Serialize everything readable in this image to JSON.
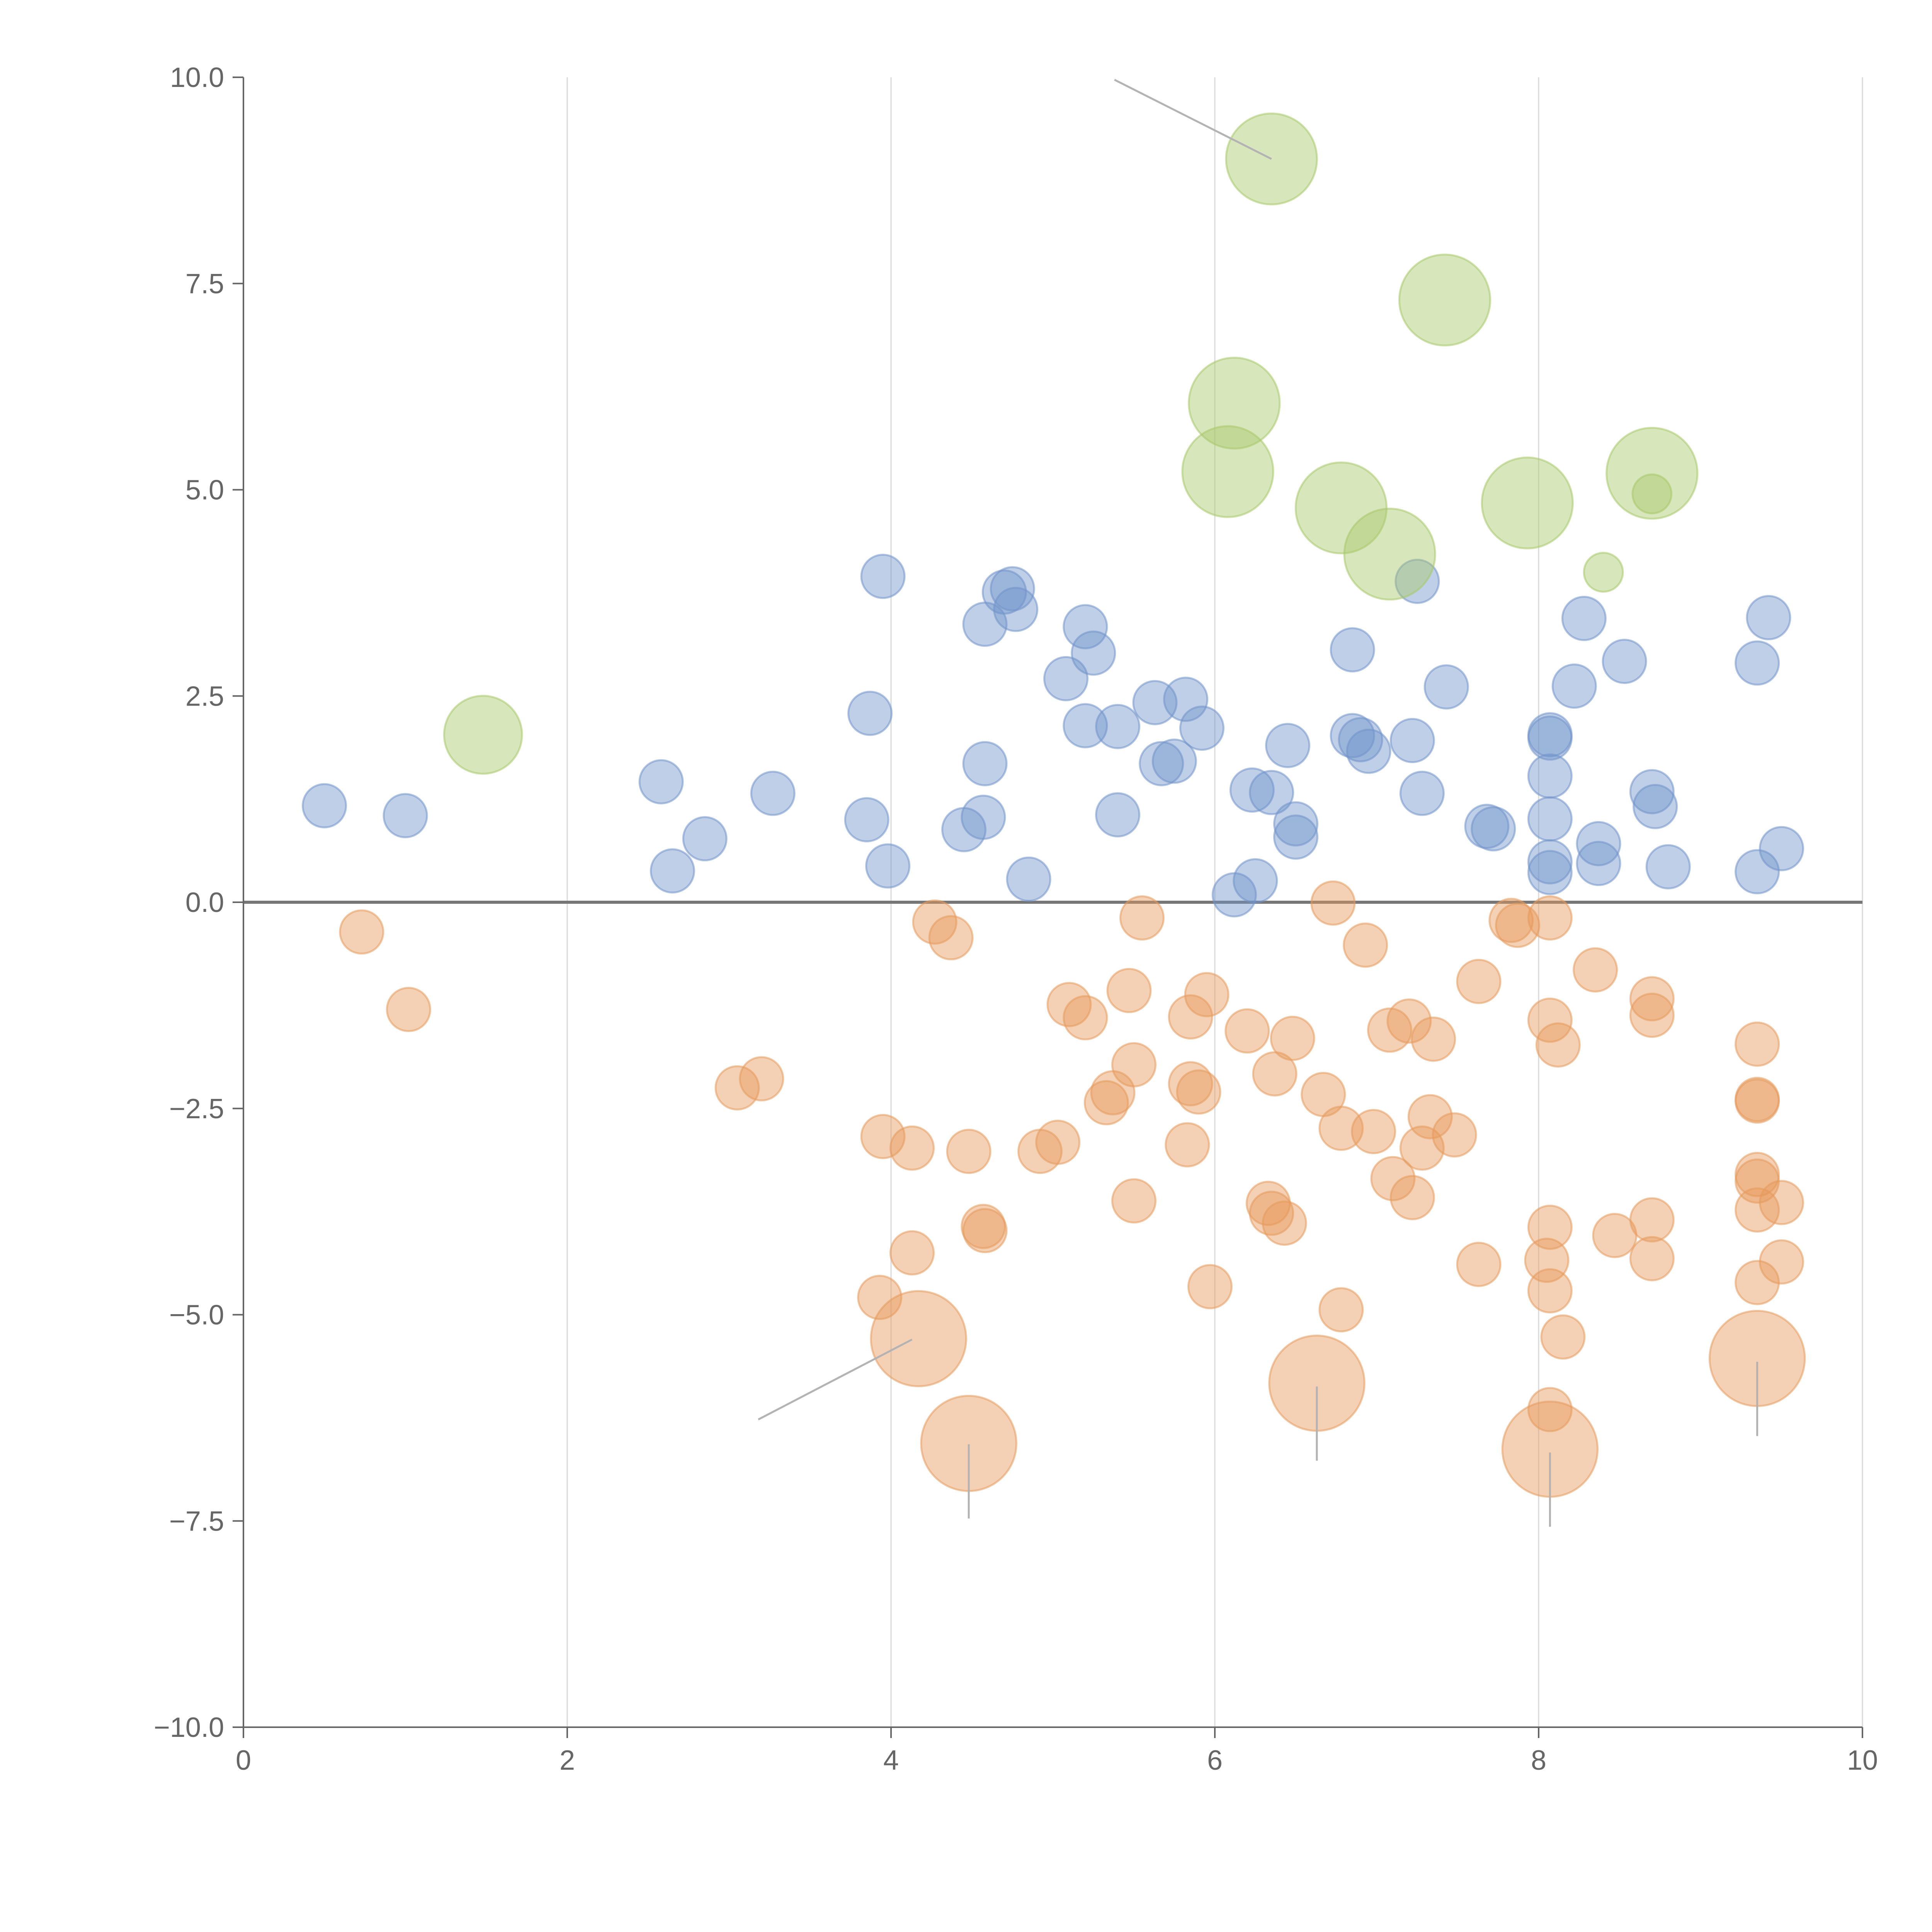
{
  "colors": {
    "series_pos": "#7194ca",
    "series_neg": "#e69a5c",
    "series_large": "#a8c86a",
    "axis": "#666666",
    "grid": "#d9d9d9",
    "zero_line": "#777777",
    "leader": "#b3b3b3"
  },
  "chart_data": {
    "type": "scatter",
    "title": "",
    "xlabel": "",
    "ylabel": "",
    "xlim": [
      0,
      10
    ],
    "ylim": [
      -10,
      10
    ],
    "x_ticks": [
      0,
      2,
      4,
      6,
      8,
      10
    ],
    "x_tick_labels": [
      "0",
      "2",
      "4",
      "6",
      "8",
      "10"
    ],
    "y_ticks": [
      10,
      7.5,
      5,
      2.5,
      0,
      -2.5,
      -5,
      -7.5,
      -10
    ],
    "y_tick_labels": [
      "10.0",
      "7.5",
      "5.0",
      "2.5",
      "0.0",
      "−2.5",
      "−5.0",
      "−7.5",
      "−10.0"
    ],
    "grid": "vertical",
    "zero_line": true,
    "legend": "none",
    "series": [
      {
        "name": "positive",
        "color_key": "series_pos",
        "points": [
          [
            0.5,
            1.17,
            1
          ],
          [
            1.0,
            1.05,
            1
          ],
          [
            2.58,
            1.46,
            1
          ],
          [
            2.65,
            0.38,
            1
          ],
          [
            2.85,
            0.77,
            1
          ],
          [
            3.27,
            1.32,
            1
          ],
          [
            3.85,
            1.0,
            1
          ],
          [
            3.87,
            2.29,
            1
          ],
          [
            3.95,
            3.95,
            1
          ],
          [
            3.98,
            0.44,
            1
          ],
          [
            4.45,
            0.88,
            1
          ],
          [
            4.57,
            1.03,
            1
          ],
          [
            4.58,
            1.68,
            1
          ],
          [
            4.58,
            3.37,
            1
          ],
          [
            4.7,
            3.76,
            1
          ],
          [
            4.75,
            3.8,
            1
          ],
          [
            4.77,
            3.55,
            1
          ],
          [
            4.85,
            0.28,
            1
          ],
          [
            5.08,
            2.71,
            1
          ],
          [
            5.2,
            2.14,
            1
          ],
          [
            5.2,
            3.34,
            1
          ],
          [
            5.25,
            3.02,
            1
          ],
          [
            5.4,
            2.13,
            1
          ],
          [
            5.4,
            1.06,
            1
          ],
          [
            5.63,
            2.42,
            1
          ],
          [
            5.67,
            1.68,
            1
          ],
          [
            5.75,
            1.71,
            1
          ],
          [
            5.82,
            2.46,
            1
          ],
          [
            5.92,
            2.11,
            1
          ],
          [
            6.12,
            0.09,
            1
          ],
          [
            6.23,
            1.36,
            1
          ],
          [
            6.25,
            0.26,
            1
          ],
          [
            6.35,
            1.33,
            1
          ],
          [
            6.45,
            1.9,
            1
          ],
          [
            6.5,
            0.95,
            1
          ],
          [
            6.5,
            0.79,
            1
          ],
          [
            6.85,
            3.06,
            1
          ],
          [
            6.85,
            2.02,
            1
          ],
          [
            6.9,
            1.97,
            1
          ],
          [
            6.95,
            1.83,
            1
          ],
          [
            7.22,
            1.96,
            1
          ],
          [
            7.25,
            3.89,
            1
          ],
          [
            7.28,
            1.32,
            1
          ],
          [
            7.43,
            2.61,
            1
          ],
          [
            7.68,
            0.92,
            1
          ],
          [
            7.72,
            0.89,
            1
          ],
          [
            8.07,
            2.03,
            1
          ],
          [
            8.07,
            1.99,
            1
          ],
          [
            8.07,
            1.53,
            1
          ],
          [
            8.07,
            1.01,
            1
          ],
          [
            8.07,
            0.49,
            1
          ],
          [
            8.07,
            0.36,
            1
          ],
          [
            8.22,
            2.62,
            1
          ],
          [
            8.28,
            3.44,
            1
          ],
          [
            8.37,
            0.71,
            1
          ],
          [
            8.37,
            0.47,
            1
          ],
          [
            8.53,
            2.92,
            1
          ],
          [
            8.7,
            1.34,
            1
          ],
          [
            8.72,
            1.16,
            1
          ],
          [
            8.8,
            0.43,
            1
          ],
          [
            9.35,
            2.9,
            1
          ],
          [
            9.35,
            0.37,
            1
          ],
          [
            9.42,
            3.45,
            1
          ],
          [
            9.5,
            0.65,
            1
          ]
        ]
      },
      {
        "name": "negative",
        "color_key": "series_neg",
        "points": [
          [
            0.73,
            -0.36,
            1
          ],
          [
            1.02,
            -1.3,
            1
          ],
          [
            3.05,
            -2.25,
            1
          ],
          [
            3.2,
            -2.14,
            1
          ],
          [
            3.95,
            -2.84,
            1
          ],
          [
            3.93,
            -4.79,
            1
          ],
          [
            4.13,
            -2.98,
            1
          ],
          [
            4.13,
            -4.25,
            1
          ],
          [
            4.17,
            -5.29,
            2.2
          ],
          [
            4.27,
            -0.24,
            1
          ],
          [
            4.37,
            -0.43,
            1
          ],
          [
            4.48,
            -3.02,
            1
          ],
          [
            4.48,
            -6.56,
            2.2
          ],
          [
            4.57,
            -3.93,
            1
          ],
          [
            4.58,
            -3.98,
            1
          ],
          [
            4.92,
            -3.02,
            1
          ],
          [
            5.03,
            -2.91,
            1
          ],
          [
            5.1,
            -1.24,
            1
          ],
          [
            5.2,
            -1.4,
            1
          ],
          [
            5.33,
            -2.43,
            1
          ],
          [
            5.37,
            -2.31,
            1
          ],
          [
            5.47,
            -1.07,
            1
          ],
          [
            5.5,
            -1.97,
            1
          ],
          [
            5.5,
            -3.62,
            1
          ],
          [
            5.55,
            -0.19,
            1
          ],
          [
            5.83,
            -2.94,
            1
          ],
          [
            5.85,
            -2.2,
            1
          ],
          [
            5.85,
            -1.39,
            1
          ],
          [
            5.9,
            -2.3,
            1
          ],
          [
            5.95,
            -1.12,
            1
          ],
          [
            5.97,
            -4.66,
            1
          ],
          [
            6.2,
            -1.56,
            1
          ],
          [
            6.33,
            -3.65,
            1
          ],
          [
            6.35,
            -3.77,
            1
          ],
          [
            6.37,
            -2.08,
            1
          ],
          [
            6.43,
            -3.89,
            1
          ],
          [
            6.48,
            -1.65,
            1
          ],
          [
            6.63,
            -5.83,
            2.2
          ],
          [
            6.67,
            -2.33,
            1
          ],
          [
            6.73,
            -0.01,
            1
          ],
          [
            6.78,
            -2.74,
            1
          ],
          [
            6.78,
            -4.94,
            1
          ],
          [
            6.93,
            -0.52,
            1
          ],
          [
            6.98,
            -2.78,
            1
          ],
          [
            7.08,
            -1.55,
            1
          ],
          [
            7.1,
            -3.35,
            1
          ],
          [
            7.2,
            -1.44,
            1
          ],
          [
            7.22,
            -3.58,
            1
          ],
          [
            7.28,
            -2.98,
            1
          ],
          [
            7.33,
            -2.6,
            1
          ],
          [
            7.35,
            -1.66,
            1
          ],
          [
            7.48,
            -2.82,
            1
          ],
          [
            7.63,
            -0.96,
            1
          ],
          [
            7.63,
            -4.39,
            1
          ],
          [
            7.83,
            -0.22,
            1
          ],
          [
            7.87,
            -0.28,
            1
          ],
          [
            8.05,
            -4.34,
            1
          ],
          [
            8.07,
            -3.94,
            1
          ],
          [
            8.07,
            -4.71,
            1
          ],
          [
            8.07,
            -1.43,
            1
          ],
          [
            8.07,
            -0.19,
            1
          ],
          [
            8.07,
            -6.15,
            1
          ],
          [
            8.07,
            -6.63,
            2.2
          ],
          [
            8.12,
            -1.73,
            1
          ],
          [
            8.15,
            -5.27,
            1
          ],
          [
            8.35,
            -0.82,
            1
          ],
          [
            8.47,
            -4.04,
            1
          ],
          [
            8.7,
            -1.17,
            1
          ],
          [
            8.7,
            -1.37,
            1
          ],
          [
            8.7,
            -3.85,
            1
          ],
          [
            8.7,
            -4.32,
            1
          ],
          [
            9.35,
            -1.72,
            1
          ],
          [
            9.35,
            -2.39,
            1
          ],
          [
            9.35,
            -2.41,
            1
          ],
          [
            9.35,
            -3.3,
            1
          ],
          [
            9.35,
            -3.38,
            1
          ],
          [
            9.35,
            -3.73,
            1
          ],
          [
            9.35,
            -4.61,
            1
          ],
          [
            9.35,
            -5.53,
            2.2
          ],
          [
            9.5,
            -3.64,
            1
          ],
          [
            9.5,
            -4.36,
            1
          ]
        ]
      },
      {
        "name": "large",
        "color_key": "series_large",
        "points": [
          [
            1.48,
            2.03,
            1.8
          ],
          [
            6.08,
            5.22,
            2.1
          ],
          [
            6.12,
            6.05,
            2.1
          ],
          [
            6.35,
            9.01,
            2.1
          ],
          [
            6.78,
            4.78,
            2.1
          ],
          [
            7.08,
            4.22,
            2.1
          ],
          [
            7.42,
            7.3,
            2.1
          ],
          [
            7.93,
            4.84,
            2.1
          ],
          [
            8.4,
            4.0,
            0.9
          ],
          [
            8.7,
            5.2,
            2.1
          ],
          [
            8.7,
            4.95,
            0.9
          ]
        ]
      }
    ],
    "leader_lines": [
      {
        "from": [
          6.35,
          9.01
        ],
        "to": [
          5.38,
          9.97
        ],
        "color_key": "leader"
      },
      {
        "from": [
          4.13,
          -5.3
        ],
        "to": [
          3.18,
          -6.27
        ],
        "color_key": "leader"
      },
      {
        "from": [
          4.48,
          -6.57
        ],
        "to": [
          4.48,
          -7.47
        ],
        "color_key": "leader"
      },
      {
        "from": [
          6.63,
          -5.87
        ],
        "to": [
          6.63,
          -6.77
        ],
        "color_key": "leader"
      },
      {
        "from": [
          8.07,
          -6.67
        ],
        "to": [
          8.07,
          -7.57
        ],
        "color_key": "leader"
      },
      {
        "from": [
          9.35,
          -5.57
        ],
        "to": [
          9.35,
          -6.47
        ],
        "color_key": "leader"
      }
    ]
  }
}
